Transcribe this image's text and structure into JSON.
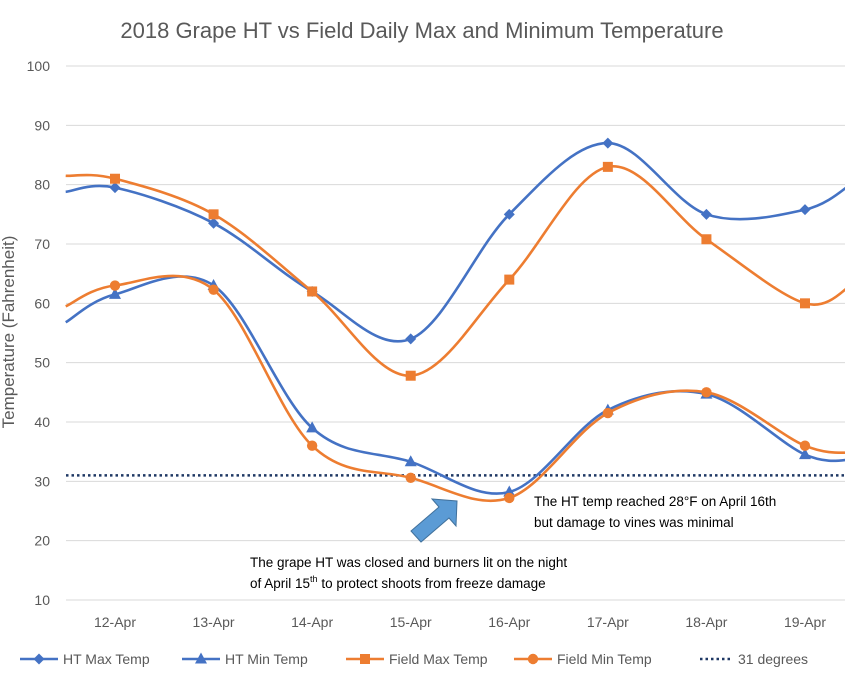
{
  "chart_data": {
    "type": "line",
    "title": "2018 Grape HT vs Field Daily Max and Minimum Temperature",
    "ylabel": "Temperature (Fahrenheit)",
    "xlabel": "",
    "categories": [
      "12-Apr",
      "13-Apr",
      "14-Apr",
      "15-Apr",
      "16-Apr",
      "17-Apr",
      "18-Apr",
      "19-Apr"
    ],
    "ylim": [
      10,
      100
    ],
    "yticks": [
      "10",
      "20",
      "30",
      "40",
      "50",
      "60",
      "70",
      "80",
      "90",
      "100"
    ],
    "grid": true,
    "legend_position": "bottom",
    "series": [
      {
        "name": "HT Max Temp",
        "color": "#4472c4",
        "marker": "diamond",
        "values": [
          79.5,
          73.5,
          62,
          54,
          75,
          87,
          75,
          75.8
        ],
        "edge_start": 78.8,
        "edge_end": 80.5
      },
      {
        "name": "HT Min Temp",
        "color": "#4472c4",
        "marker": "triangle",
        "values": [
          61.5,
          63,
          39,
          33.3,
          28.2,
          42,
          44.7,
          34.5
        ],
        "edge_start": 56.8,
        "edge_end": 33.7
      },
      {
        "name": "Field Max Temp",
        "color": "#ed7d31",
        "marker": "square",
        "values": [
          81,
          75,
          62,
          47.8,
          64,
          83,
          70.8,
          60
        ],
        "edge_start": 81.5,
        "edge_end": 63.5
      },
      {
        "name": "Field Min Temp",
        "color": "#ed7d31",
        "marker": "circle",
        "values": [
          63,
          62.3,
          36,
          30.6,
          27.2,
          41.5,
          45,
          36
        ],
        "edge_start": 59.5,
        "edge_end": 34.8
      }
    ],
    "reference_line": {
      "name": "31 degrees",
      "value": 31,
      "color": "#1f3864",
      "style": "dotted"
    },
    "annotations": [
      {
        "text_lines": [
          "The HT temp reached 28°F on April 16th",
          "but damage to vines was minimal"
        ]
      },
      {
        "text_lines": [
          "The grape HT was closed and burners lit on the night",
          "of April 15",
          "th",
          " to protect shoots from freeze damage"
        ]
      }
    ],
    "arrow_color": "#5b9bd5"
  }
}
